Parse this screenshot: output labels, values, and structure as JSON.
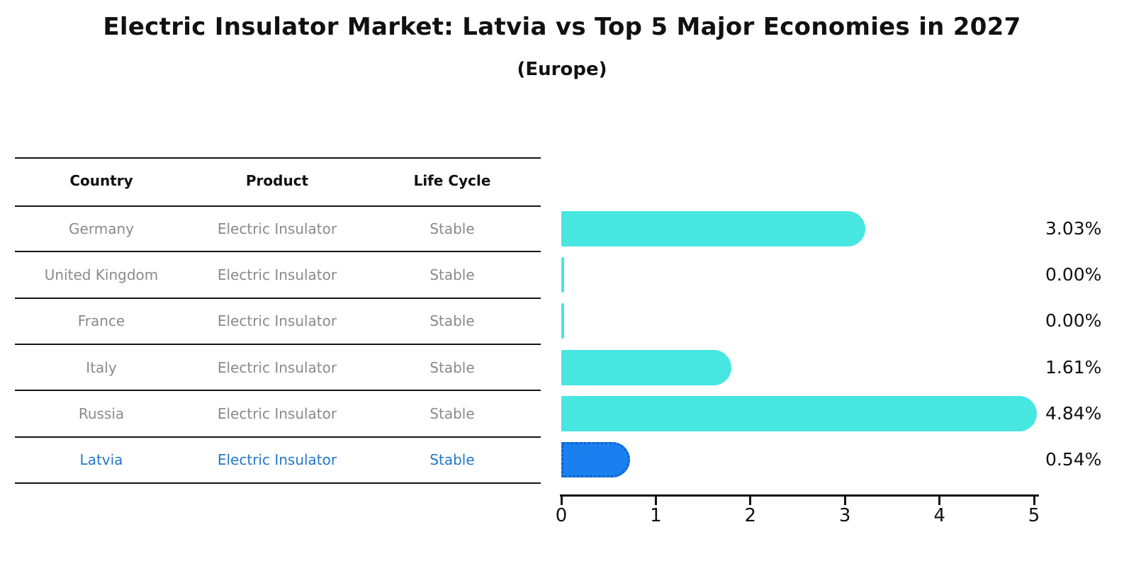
{
  "title": "Electric Insulator Market: Latvia vs Top 5 Major Economies in 2027",
  "subtitle": "(Europe)",
  "table": {
    "headers": [
      "Country",
      "Product",
      "Life Cycle"
    ],
    "rows": [
      {
        "country": "Germany",
        "product": "Electric Insulator",
        "life_cycle": "Stable",
        "highlighted": false
      },
      {
        "country": "United Kingdom",
        "product": "Electric Insulator",
        "life_cycle": "Stable",
        "highlighted": false
      },
      {
        "country": "France",
        "product": "Electric Insulator",
        "life_cycle": "Stable",
        "highlighted": false
      },
      {
        "country": "Italy",
        "product": "Electric Insulator",
        "life_cycle": "Stable",
        "highlighted": false
      },
      {
        "country": "Russia",
        "product": "Electric Insulator",
        "life_cycle": "Stable",
        "highlighted": false
      },
      {
        "country": "Latvia",
        "product": "Electric Insulator",
        "life_cycle": "Stable",
        "highlighted": true
      }
    ]
  },
  "chart_data": {
    "type": "bar",
    "orientation": "horizontal",
    "title": "Electric Insulator Market: Latvia vs Top 5 Major Economies in 2027",
    "subtitle": "(Europe)",
    "categories": [
      "Germany",
      "United Kingdom",
      "France",
      "Italy",
      "Russia",
      "Latvia"
    ],
    "values": [
      3.03,
      0.0,
      0.0,
      1.61,
      4.84,
      0.54
    ],
    "value_labels": [
      "3.03%",
      "0.00%",
      "0.00%",
      "1.61%",
      "4.84%",
      "0.54%"
    ],
    "x_ticks": [
      "0",
      "1",
      "2",
      "3",
      "4",
      "5"
    ],
    "xlim": [
      0,
      5
    ],
    "grid": false,
    "legend": "none",
    "bar_color": "#48e6e1",
    "highlight_bar_color": "#1a80f0",
    "highlight_index": 5
  },
  "colors": {
    "bar": "#48e6e1",
    "highlight_bar": "#1a80f0",
    "highlight_bar_border": "#1260c4",
    "highlight_text": "#2478c8",
    "row_text": "#8a8a8a",
    "heading_text": "#111111",
    "rule": "#151515",
    "background": "#ffffff"
  }
}
